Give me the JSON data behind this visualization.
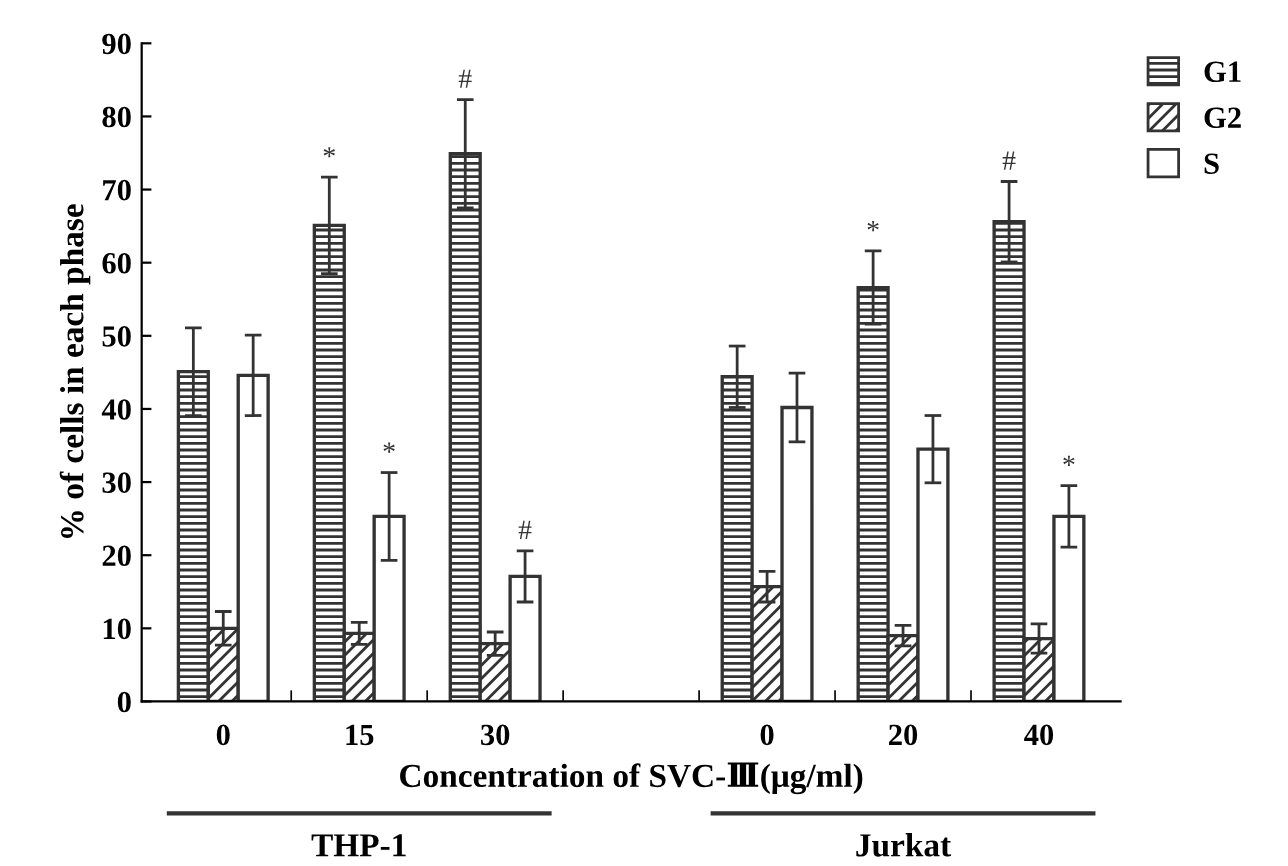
{
  "chart_data": {
    "type": "bar",
    "xlabel": "Concentration of SVC-Ⅲ(μg/ml)",
    "ylabel": "% of cells in each phase",
    "categories": [
      "0",
      "15",
      "30",
      null,
      "0",
      "20",
      "40"
    ],
    "series": [
      {
        "name": "G1",
        "color": "#333333",
        "values": [
          45.1,
          65.1,
          74.9,
          null,
          44.4,
          56.6,
          65.6
        ],
        "errors": [
          6,
          6.6,
          7.4,
          null,
          4.2,
          5,
          5.5
        ],
        "value_labels": [
          null,
          "*",
          "#",
          null,
          null,
          "*",
          "#"
        ]
      },
      {
        "name": "G2",
        "color": "#333333",
        "values": [
          10,
          9.3,
          7.9,
          null,
          15.7,
          9,
          8.6
        ],
        "errors": [
          2.3,
          1.5,
          1.6,
          null,
          2.1,
          1.4,
          2
        ]
      },
      {
        "name": "S",
        "color": "#333333",
        "values": [
          44.6,
          25.3,
          17.1,
          null,
          40.2,
          34.5,
          25.3
        ],
        "errors": [
          5.5,
          6,
          3.5,
          null,
          4.7,
          4.6,
          4.2
        ],
        "value_labels": [
          null,
          "*",
          "#",
          null,
          null,
          null,
          "*"
        ]
      }
    ],
    "ylim": [
      0,
      90
    ],
    "yticks": [
      0,
      10,
      20,
      30,
      40,
      50,
      60,
      70,
      80,
      90
    ],
    "grid": false,
    "legend": "top right",
    "annotations": [
      "THP-1",
      "Jurkat"
    ]
  }
}
